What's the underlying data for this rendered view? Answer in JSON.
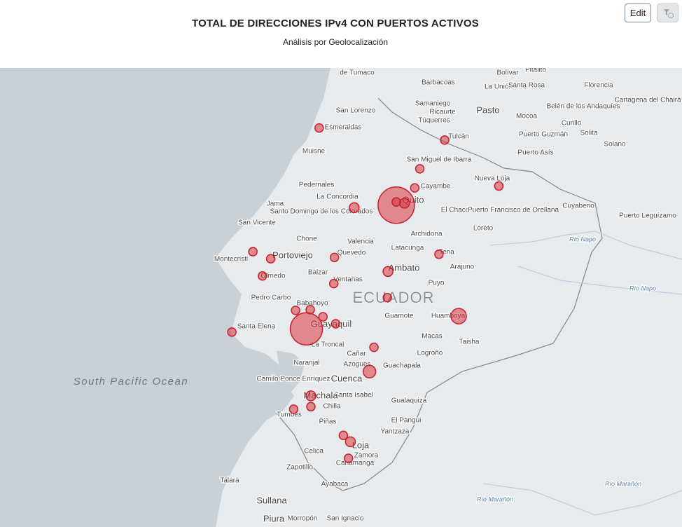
{
  "header": {
    "title": "TOTAL DE DIRECCIONES IPv4 CON PUERTOS  ACTIVOS",
    "subtitle": "Análisis por Geolocalización",
    "edit_button": "Edit"
  },
  "map": {
    "labels": [
      "de Tumaco",
      "Bolívar",
      "Pitalito",
      "Barbacoas",
      "La Unión",
      "Santa Rosa",
      "Florencia",
      "Cartagena del Chairá",
      "San Lorenzo",
      "Samaniego",
      "Ricaurte",
      "Túquerres",
      "Pasto",
      "Mocoa",
      "Belén de los Andaquíes",
      "Curillo",
      "Esmeraldas",
      "Tulcán",
      "Puerto Guzmán",
      "Solita",
      "Muisne",
      "San Miguel de Ibarra",
      "Puerto Asís",
      "Solano",
      "Nueva Loja",
      "Pedernales",
      "Cayambe",
      "La Concordia",
      "Jama",
      "Quito",
      "Santo Domingo de los Colorados",
      "El Chaco",
      "Puerto Francisco de Orellana",
      "Cuyabeno",
      "Puerto Leguízamo",
      "San Vicente",
      "Archidona",
      "Loreto",
      "Chone",
      "Valencia",
      "Río Napo",
      "Latacunga",
      "Portoviejo",
      "Quevedo",
      "Montecristi",
      "Tena",
      "Ambato",
      "Arajuno",
      "Balzar",
      "Ventanas",
      "Olmedo",
      "Puyo",
      "Río Napo",
      "ECUADOR",
      "Pedro Carbo",
      "Babahoyo",
      "Guamote",
      "Huamboya",
      "Santa Elena",
      "Guayaquil",
      "Taisha",
      "Macas",
      "La Troncal",
      "Cañar",
      "Logroño",
      "Naranjal",
      "Azogues",
      "Guachapala",
      "South Pacific Ocean",
      "Camilo Ponce Enríquez",
      "Cuenca",
      "Santa Isabel",
      "Machala",
      "Gualaquiza",
      "Chilla",
      "Tumbes",
      "El Pangui",
      "Piñas",
      "Yantzaza",
      "Celica",
      "Zamora",
      "Loja",
      "Zapotillo",
      "Cariamanga",
      "Talara",
      "Ayabaca",
      "Sullana",
      "Piura",
      "Morropón",
      "San Ignacio",
      "Río Marañón",
      "Río Marañón"
    ],
    "points": [
      {
        "lat": 0.96,
        "lon": -79.7,
        "value": 360
      },
      {
        "lat": 0.77,
        "lon": -77.73,
        "value": 360
      },
      {
        "lat": 0.32,
        "lon": -78.12,
        "value": 360
      },
      {
        "lat": 0.02,
        "lon": -78.2,
        "value": 360
      },
      {
        "lat": -0.25,
        "lon": -78.49,
        "value": 6760
      },
      {
        "lat": -0.2,
        "lon": -78.49,
        "value": 360
      },
      {
        "lat": -0.22,
        "lon": -78.36,
        "value": 490
      },
      {
        "lat": 0.05,
        "lon": -76.88,
        "value": 360
      },
      {
        "lat": -0.29,
        "lon": -79.15,
        "value": 490
      },
      {
        "lat": -0.98,
        "lon": -80.74,
        "value": 360
      },
      {
        "lat": -1.09,
        "lon": -80.46,
        "value": 360
      },
      {
        "lat": -1.36,
        "lon": -80.59,
        "value": 360
      },
      {
        "lat": -1.07,
        "lon": -79.46,
        "value": 360
      },
      {
        "lat": -1.02,
        "lon": -77.82,
        "value": 360
      },
      {
        "lat": -1.29,
        "lon": -78.62,
        "value": 490
      },
      {
        "lat": -1.48,
        "lon": -79.47,
        "value": 360
      },
      {
        "lat": -1.7,
        "lon": -78.63,
        "value": 360
      },
      {
        "lat": -1.89,
        "lon": -79.84,
        "value": 360
      },
      {
        "lat": -1.9,
        "lon": -80.07,
        "value": 360
      },
      {
        "lat": -2.0,
        "lon": -79.64,
        "value": 360
      },
      {
        "lat": -2.11,
        "lon": -79.44,
        "value": 360
      },
      {
        "lat": -2.19,
        "lon": -79.9,
        "value": 5290
      },
      {
        "lat": -2.24,
        "lon": -81.07,
        "value": 360
      },
      {
        "lat": -1.99,
        "lon": -77.51,
        "value": 1210
      },
      {
        "lat": -2.48,
        "lon": -78.84,
        "value": 360
      },
      {
        "lat": -2.86,
        "lon": -78.91,
        "value": 810
      },
      {
        "lat": -3.24,
        "lon": -79.83,
        "value": 490
      },
      {
        "lat": -3.41,
        "lon": -79.83,
        "value": 360
      },
      {
        "lat": -3.45,
        "lon": -80.1,
        "value": 360
      },
      {
        "lat": -3.86,
        "lon": -79.32,
        "value": 360
      },
      {
        "lat": -3.96,
        "lon": -79.21,
        "value": 490
      },
      {
        "lat": -4.22,
        "lon": -79.24,
        "value": 360
      }
    ]
  }
}
